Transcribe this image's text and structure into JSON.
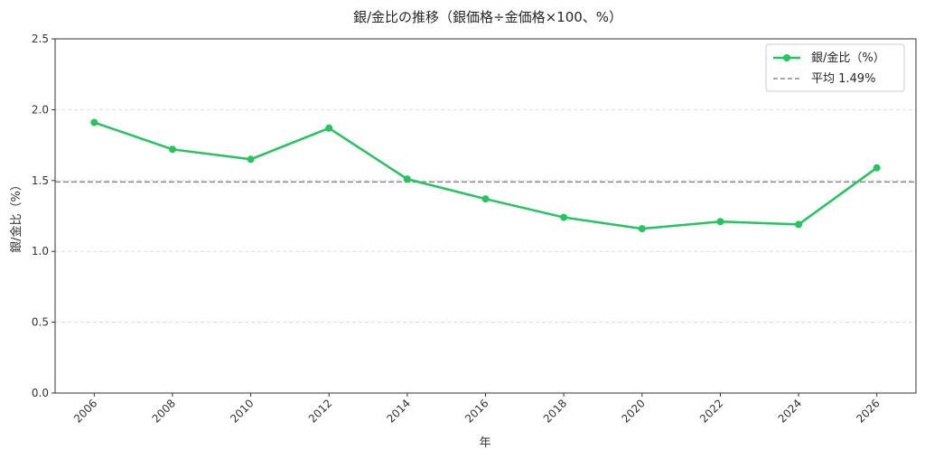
{
  "chart_data": {
    "type": "line",
    "title": "銀/金比の推移（銀価格÷金価格×100、%）",
    "xlabel": "年",
    "ylabel": "銀/金比（%）",
    "x": [
      2006,
      2008,
      2010,
      2012,
      2014,
      2016,
      2018,
      2020,
      2022,
      2024,
      2026
    ],
    "x_tick_labels": [
      "2006",
      "2008",
      "2010",
      "2012",
      "2014",
      "2016",
      "2018",
      "2020",
      "2022",
      "2024",
      "2026"
    ],
    "y_tick_labels": [
      "0.0",
      "0.5",
      "1.0",
      "1.5",
      "2.0",
      "2.5"
    ],
    "y_ticks": [
      0,
      0.5,
      1.0,
      1.5,
      2.0,
      2.5
    ],
    "ylim": [
      0,
      2.5
    ],
    "xlim": [
      2005,
      2027
    ],
    "grid": "y-dashed",
    "legend_position": "top-right",
    "series": [
      {
        "name": "銀/金比（%）",
        "color": "#22c55e",
        "values": [
          1.91,
          1.72,
          1.65,
          1.87,
          1.51,
          1.37,
          1.24,
          1.16,
          1.21,
          1.19,
          1.59
        ]
      }
    ],
    "reference_line": {
      "label": "平均 1.49%",
      "value": 1.49,
      "color": "#888888",
      "style": "dashed"
    }
  }
}
